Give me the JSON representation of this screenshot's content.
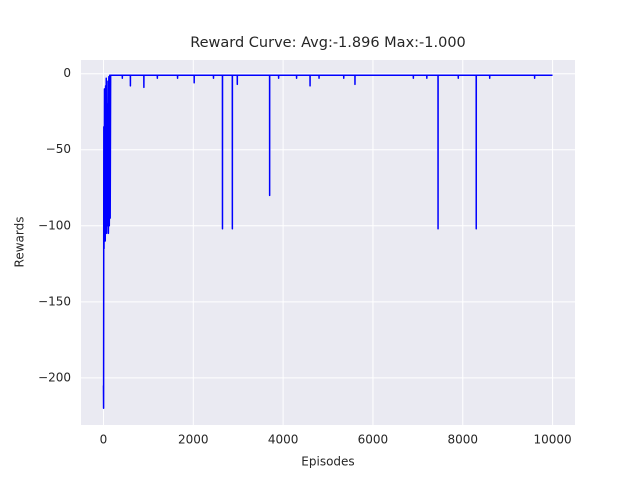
{
  "chart_data": {
    "type": "line",
    "title": "Reward Curve: Avg:-1.896 Max:-1.000",
    "x_label": "Episodes",
    "y_label": "Rewards",
    "x": [
      0,
      3,
      8,
      12,
      18,
      22,
      28,
      35,
      40,
      48,
      55,
      62,
      70,
      80,
      90,
      100,
      110,
      120,
      130,
      140,
      150,
      160,
      419,
      420,
      421,
      599,
      600,
      601,
      899,
      900,
      901,
      1199,
      1200,
      1201,
      1649,
      1650,
      1651,
      2019,
      2020,
      2021,
      2449,
      2450,
      2451,
      2649,
      2650,
      2651,
      2869,
      2870,
      2871,
      2979,
      2980,
      2981,
      3699,
      3700,
      3701,
      3899,
      3900,
      3901,
      4299,
      4300,
      4301,
      4599,
      4600,
      4601,
      4799,
      4800,
      4801,
      5349,
      5350,
      5351,
      5599,
      5600,
      5601,
      6899,
      6900,
      6901,
      7199,
      7200,
      7201,
      7449,
      7450,
      7451,
      7899,
      7900,
      7901,
      8299,
      8300,
      8301,
      8599,
      8600,
      8601,
      9599,
      9600,
      9601,
      9999
    ],
    "series": [
      {
        "color": "#0000ff",
        "values": [
          -205,
          -220,
          -35,
          -115,
          -80,
          -10,
          -105,
          -40,
          -110,
          -8,
          -100,
          -3,
          -105,
          -20,
          -100,
          -5,
          -105,
          -2,
          -100,
          -1,
          -95,
          -1,
          -1,
          -3,
          -1,
          -1,
          -8,
          -1,
          -1,
          -9,
          -1,
          -1,
          -3,
          -1,
          -1,
          -3,
          -1,
          -1,
          -6,
          -1,
          -1,
          -3,
          -1,
          -1,
          -102,
          -1,
          -1,
          -102,
          -1,
          -1,
          -7,
          -1,
          -1,
          -80,
          -1,
          -1,
          -3,
          -1,
          -1,
          -3,
          -1,
          -1,
          -8,
          -1,
          -1,
          -3,
          -1,
          -1,
          -3,
          -1,
          -1,
          -7,
          -1,
          -1,
          -3,
          -1,
          -1,
          -3,
          -1,
          -1,
          -102,
          -1,
          -1,
          -3,
          -1,
          -1,
          -102,
          -1,
          -1,
          -3,
          -1,
          -1,
          -3,
          -1,
          -1
        ]
      }
    ],
    "xlim": [
      -500,
      10499
    ],
    "ylim": [
      -231,
      9
    ],
    "xticks": [
      0,
      2000,
      4000,
      6000,
      8000,
      10000
    ],
    "yticks": [
      {
        "value": -200,
        "label": "−200"
      },
      {
        "value": -150,
        "label": "−150"
      },
      {
        "value": -100,
        "label": "−100"
      },
      {
        "value": -50,
        "label": "−50"
      },
      0
    ],
    "grid": true
  }
}
